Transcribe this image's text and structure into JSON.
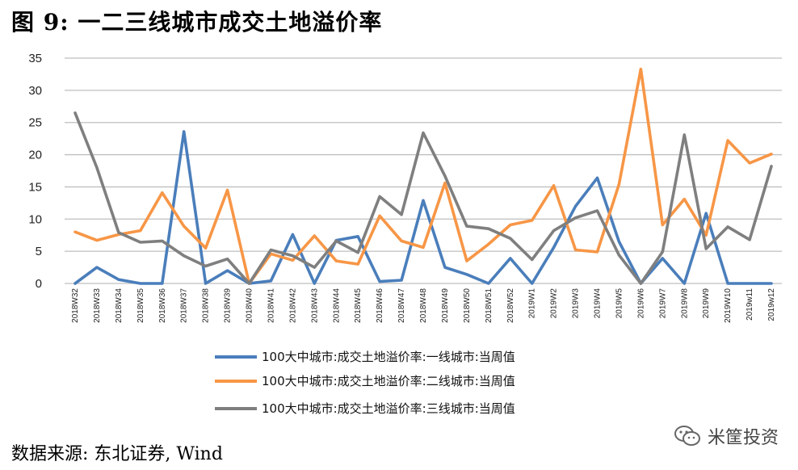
{
  "title": "图 9: 一二三线城市成交土地溢价率",
  "source": "数据来源: 东北证券, Wind",
  "watermark": "米筐投资",
  "chart_data": {
    "type": "line",
    "title": "图 9: 一二三线城市成交土地溢价率",
    "xlabel": "",
    "ylabel": "",
    "ylim": [
      0,
      35
    ],
    "yticks": [
      0,
      5,
      10,
      15,
      20,
      25,
      30,
      35
    ],
    "grid": true,
    "legend_position": "bottom",
    "categories": [
      "2018W32",
      "2018W33",
      "2018W34",
      "2018W35",
      "2018W36",
      "2018W37",
      "2018W38",
      "2018W39",
      "2018W40",
      "2018W41",
      "2018W42",
      "2018W43",
      "2018W44",
      "2018W45",
      "2018W46",
      "2018W47",
      "2018W48",
      "2018W49",
      "2018W50",
      "2018W51",
      "2018W52",
      "2019W1",
      "2019W2",
      "2019W3",
      "2019W4",
      "2019W5",
      "2019W6",
      "2019W7",
      "2019W8",
      "2019W9",
      "2019W10",
      "2019w11",
      "2019w12"
    ],
    "series": [
      {
        "name": "100大中城市:成交土地溢价率:一线城市:当周值",
        "color": "#4a7ebb",
        "values": [
          0,
          2.5,
          0.6,
          0,
          0,
          23.6,
          0,
          2,
          0,
          0.4,
          7.6,
          0,
          6.7,
          7.3,
          0.3,
          0.5,
          12.9,
          2.5,
          1.4,
          0,
          3.9,
          0,
          5.6,
          12,
          16.4,
          6.5,
          0,
          3.9,
          0,
          10.9,
          0,
          0,
          0
        ]
      },
      {
        "name": "100大中城市:成交土地溢价率:二线城市:当周值",
        "color": "#f79646",
        "values": [
          8,
          6.7,
          7.6,
          8.2,
          14.1,
          8.9,
          5.5,
          14.5,
          0,
          4.6,
          3.6,
          7.4,
          3.5,
          3,
          10.5,
          6.6,
          5.6,
          15.6,
          3.5,
          6.1,
          9.1,
          9.8,
          15.2,
          5.2,
          4.9,
          15.4,
          33.3,
          9.1,
          13.1,
          7.5,
          22.2,
          18.7,
          20.1
        ]
      },
      {
        "name": "100大中城市:成交土地溢价率:三线城市:当周值",
        "color": "#7f7f7f",
        "values": [
          26.5,
          18,
          7.9,
          6.4,
          6.6,
          4.3,
          2.7,
          3.8,
          0,
          5.2,
          4.3,
          2.5,
          6.6,
          4.8,
          13.5,
          10.7,
          23.4,
          16.7,
          8.9,
          8.5,
          7,
          3.7,
          8.2,
          10.2,
          11.3,
          4.4,
          0,
          4.9,
          23.1,
          5.4,
          8.8,
          6.8,
          18.2
        ]
      }
    ]
  }
}
